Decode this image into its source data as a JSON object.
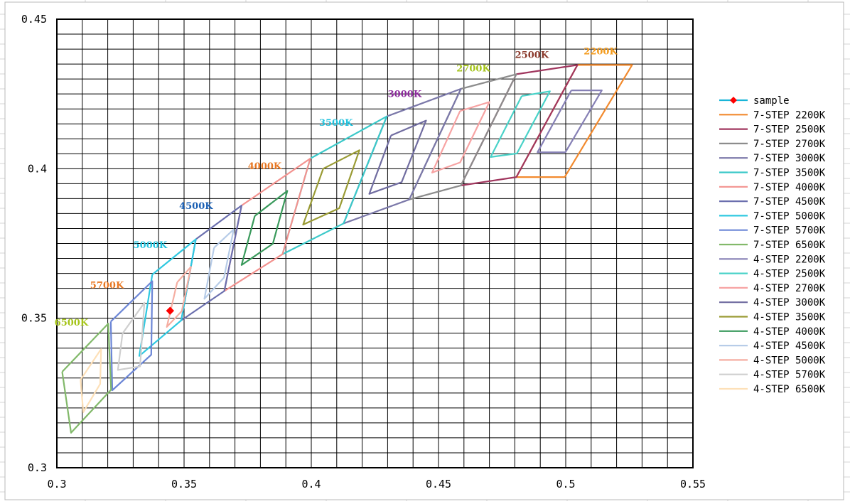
{
  "chart_data": {
    "type": "scatter",
    "title": "",
    "xlabel": "",
    "ylabel": "",
    "xlim": [
      0.3,
      0.55
    ],
    "ylim": [
      0.3,
      0.45
    ],
    "x_tick_labels": [
      "0.3",
      "0.35",
      "0.4",
      "0.45",
      "0.5",
      "0.55"
    ],
    "x_tick_values": [
      0.3,
      0.35,
      0.4,
      0.45,
      0.5,
      0.55
    ],
    "y_tick_labels": [
      "0.3",
      "0.35",
      "0.4",
      "0.45"
    ],
    "y_tick_values": [
      0.3,
      0.35,
      0.4,
      0.45
    ],
    "grid": true,
    "legend_position": "right",
    "series": [
      {
        "name": "sample",
        "color": "#19b5d8",
        "marker": "diamond",
        "marker_color": "#ff0000",
        "points": [
          [
            0.3445,
            0.3525
          ]
        ]
      },
      {
        "name": "7-STEP 2200K",
        "color": "#f28a2e",
        "points": [
          [
            0.5046,
            0.4347
          ],
          [
            0.5261,
            0.4347
          ],
          [
            0.4996,
            0.3972
          ],
          [
            0.4806,
            0.3972
          ],
          [
            0.5046,
            0.4347
          ]
        ]
      },
      {
        "name": "7-STEP 2500K",
        "color": "#a0365e",
        "points": [
          [
            0.4806,
            0.4316
          ],
          [
            0.5046,
            0.4347
          ],
          [
            0.4806,
            0.3972
          ],
          [
            0.4588,
            0.3944
          ],
          [
            0.4806,
            0.4316
          ]
        ]
      },
      {
        "name": "7-STEP 2700K",
        "color": "#8c8c8c",
        "points": [
          [
            0.4588,
            0.4267
          ],
          [
            0.4806,
            0.4316
          ],
          [
            0.4588,
            0.3944
          ],
          [
            0.4385,
            0.3897
          ],
          [
            0.4588,
            0.4267
          ]
        ]
      },
      {
        "name": "7-STEP 3000K",
        "color": "#7b78a9",
        "points": [
          [
            0.4297,
            0.4175
          ],
          [
            0.4588,
            0.4267
          ],
          [
            0.4385,
            0.3897
          ],
          [
            0.4127,
            0.3817
          ],
          [
            0.4297,
            0.4175
          ]
        ]
      },
      {
        "name": "7-STEP 3500K",
        "color": "#3cc9c9",
        "points": [
          [
            0.3996,
            0.4034
          ],
          [
            0.4297,
            0.4175
          ],
          [
            0.4127,
            0.3817
          ],
          [
            0.3887,
            0.3714
          ],
          [
            0.3996,
            0.4034
          ]
        ]
      },
      {
        "name": "7-STEP 4000K",
        "color": "#f3928f",
        "points": [
          [
            0.3726,
            0.3877
          ],
          [
            0.3996,
            0.4034
          ],
          [
            0.3887,
            0.3714
          ],
          [
            0.3658,
            0.3591
          ],
          [
            0.3726,
            0.3877
          ]
        ]
      },
      {
        "name": "7-STEP 4500K",
        "color": "#6b6fae",
        "points": [
          [
            0.3546,
            0.3764
          ],
          [
            0.3726,
            0.3877
          ],
          [
            0.3658,
            0.3591
          ],
          [
            0.3489,
            0.3493
          ],
          [
            0.3546,
            0.3764
          ]
        ]
      },
      {
        "name": "7-STEP 5000K",
        "color": "#2fc8e0",
        "points": [
          [
            0.3375,
            0.3646
          ],
          [
            0.3546,
            0.3764
          ],
          [
            0.3489,
            0.3493
          ],
          [
            0.3324,
            0.3374
          ],
          [
            0.3375,
            0.3646
          ]
        ]
      },
      {
        "name": "7-STEP 5700K",
        "color": "#6c86d6",
        "points": [
          [
            0.3212,
            0.3489
          ],
          [
            0.3375,
            0.3624
          ],
          [
            0.3371,
            0.3378
          ],
          [
            0.3218,
            0.3259
          ],
          [
            0.3212,
            0.3489
          ]
        ]
      },
      {
        "name": "7-STEP 6500K",
        "color": "#82b96a",
        "points": [
          [
            0.3021,
            0.3321
          ],
          [
            0.3202,
            0.3482
          ],
          [
            0.3213,
            0.3261
          ],
          [
            0.3056,
            0.3117
          ],
          [
            0.3021,
            0.3321
          ]
        ]
      },
      {
        "name": "4-STEP 2200K",
        "color": "#8680b5",
        "points": [
          [
            0.5022,
            0.4262
          ],
          [
            0.5142,
            0.4262
          ],
          [
            0.4999,
            0.4055
          ],
          [
            0.4889,
            0.4055
          ],
          [
            0.5022,
            0.4262
          ]
        ]
      },
      {
        "name": "4-STEP 2500K",
        "color": "#49d2c8",
        "points": [
          [
            0.4827,
            0.4243
          ],
          [
            0.4938,
            0.4259
          ],
          [
            0.4808,
            0.4051
          ],
          [
            0.4705,
            0.4039
          ],
          [
            0.4827,
            0.4243
          ]
        ]
      },
      {
        "name": "4-STEP 2700K",
        "color": "#f7a3a3",
        "points": [
          [
            0.4585,
            0.4193
          ],
          [
            0.47,
            0.4223
          ],
          [
            0.4585,
            0.4021
          ],
          [
            0.4475,
            0.3987
          ],
          [
            0.4585,
            0.4193
          ]
        ]
      },
      {
        "name": "4-STEP 3000K",
        "color": "#706ca0",
        "points": [
          [
            0.4313,
            0.4111
          ],
          [
            0.4451,
            0.4161
          ],
          [
            0.4355,
            0.3955
          ],
          [
            0.4228,
            0.3916
          ],
          [
            0.4313,
            0.4111
          ]
        ]
      },
      {
        "name": "4-STEP 3500K",
        "color": "#9a9b34",
        "points": [
          [
            0.4047,
            0.4
          ],
          [
            0.4189,
            0.4062
          ],
          [
            0.411,
            0.3868
          ],
          [
            0.3968,
            0.3813
          ],
          [
            0.4047,
            0.4
          ]
        ]
      },
      {
        "name": "4-STEP 4000K",
        "color": "#3a9a5c",
        "points": [
          [
            0.3778,
            0.3842
          ],
          [
            0.3906,
            0.3926
          ],
          [
            0.3849,
            0.3749
          ],
          [
            0.3726,
            0.3678
          ],
          [
            0.3778,
            0.3842
          ]
        ]
      },
      {
        "name": "4-STEP 4500K",
        "color": "#b7cce8",
        "points": [
          [
            0.3618,
            0.3736
          ],
          [
            0.3695,
            0.3797
          ],
          [
            0.3657,
            0.3636
          ],
          [
            0.358,
            0.3565
          ],
          [
            0.3618,
            0.3736
          ]
        ]
      },
      {
        "name": "4-STEP 5000K",
        "color": "#f5aea2",
        "points": [
          [
            0.3473,
            0.362
          ],
          [
            0.3527,
            0.3672
          ],
          [
            0.3491,
            0.3524
          ],
          [
            0.3432,
            0.3471
          ],
          [
            0.3473,
            0.362
          ]
        ]
      },
      {
        "name": "4-STEP 5700K",
        "color": "#cfcfcf",
        "points": [
          [
            0.3258,
            0.3449
          ],
          [
            0.3344,
            0.3552
          ],
          [
            0.3327,
            0.3339
          ],
          [
            0.324,
            0.3327
          ],
          [
            0.3258,
            0.3449
          ]
        ]
      },
      {
        "name": "4-STEP 6500K",
        "color": "#fde0b8",
        "points": [
          [
            0.3093,
            0.3294
          ],
          [
            0.3174,
            0.3397
          ],
          [
            0.317,
            0.328
          ],
          [
            0.3104,
            0.3186
          ],
          [
            0.3093,
            0.3294
          ]
        ]
      }
    ],
    "annotations": [
      {
        "text": "2200K",
        "x": 0.5137,
        "y": 0.4382,
        "color": "#f49a1a"
      },
      {
        "text": "2500K",
        "x": 0.4867,
        "y": 0.437,
        "color": "#8b3a2c"
      },
      {
        "text": "2700K",
        "x": 0.4637,
        "y": 0.4325,
        "color": "#a5c419"
      },
      {
        "text": "3000K",
        "x": 0.4367,
        "y": 0.424,
        "color": "#8c2a9c"
      },
      {
        "text": "3500K",
        "x": 0.4097,
        "y": 0.4143,
        "color": "#20c2dd"
      },
      {
        "text": "4000K",
        "x": 0.3817,
        "y": 0.3999,
        "color": "#e87722"
      },
      {
        "text": "4500K",
        "x": 0.3547,
        "y": 0.3865,
        "color": "#1b60b4"
      },
      {
        "text": "5000K",
        "x": 0.3367,
        "y": 0.3735,
        "color": "#20c2dd"
      },
      {
        "text": "5700K",
        "x": 0.3197,
        "y": 0.36,
        "color": "#e87722"
      },
      {
        "text": "6500K",
        "x": 0.3057,
        "y": 0.3475,
        "color": "#a5c419"
      }
    ]
  }
}
